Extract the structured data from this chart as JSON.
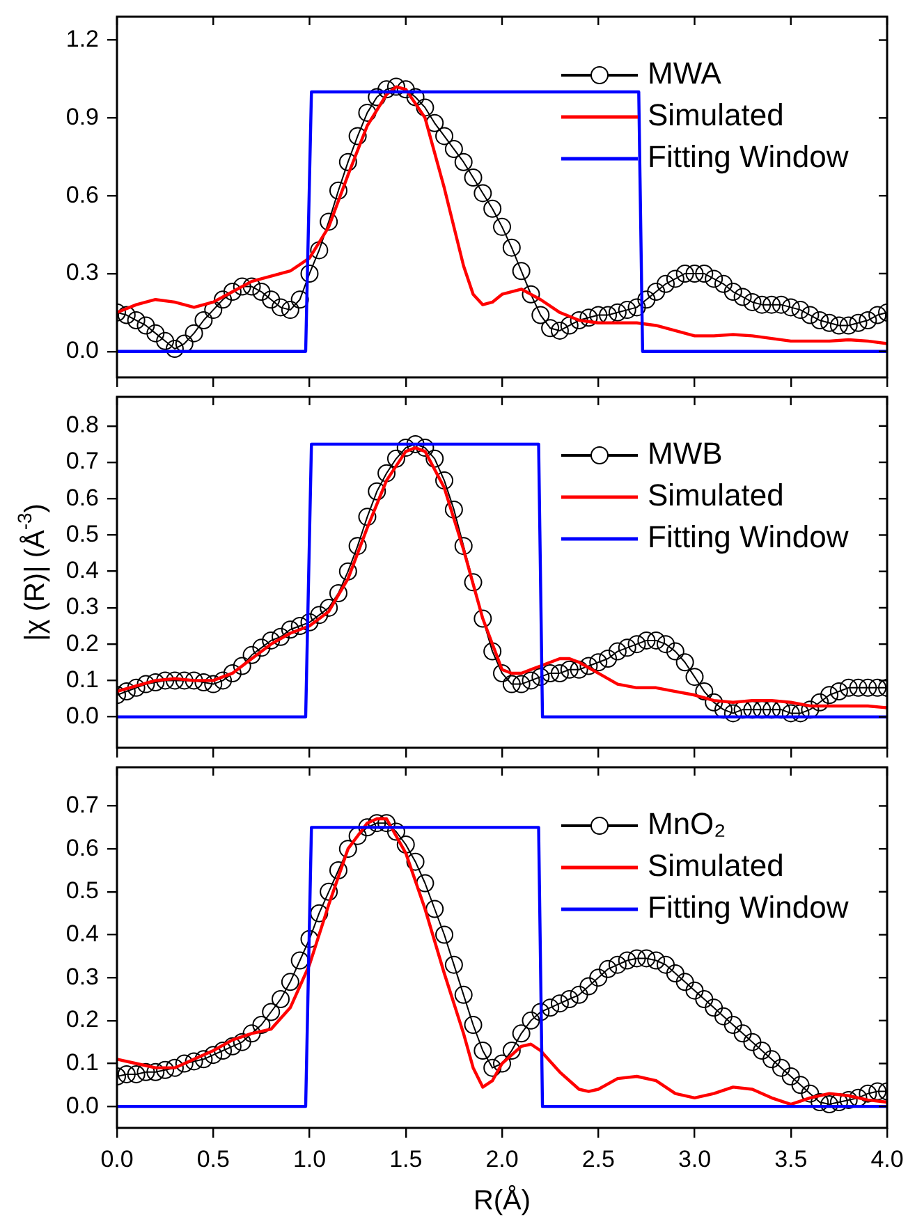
{
  "chart_data": [
    {
      "type": "line",
      "legend": "top right",
      "tick_labels": "y",
      "grid": false,
      "xlim": [
        0,
        4
      ],
      "xticks": [
        {
          "value": 0,
          "label": null
        },
        {
          "value": 0.5,
          "label": null
        },
        {
          "value": 1,
          "label": null
        },
        {
          "value": 1.5,
          "label": null
        },
        {
          "value": 2,
          "label": null
        },
        {
          "value": 2.5,
          "label": null
        },
        {
          "value": 3,
          "label": null
        },
        {
          "value": 3.5,
          "label": null
        },
        {
          "value": 4,
          "label": null
        }
      ],
      "ylim": [
        -0.1,
        1.29
      ],
      "yticks": [
        {
          "value": 0,
          "label": "0.0"
        },
        {
          "value": 0.3,
          "label": "0.3"
        },
        {
          "value": 0.6,
          "label": "0.6"
        },
        {
          "value": 0.9,
          "label": "0.9"
        },
        {
          "value": 1.2,
          "label": "1.2"
        }
      ],
      "series": [
        {
          "name": "MWA",
          "color": "#000000",
          "marker": "circle",
          "x": [
            0,
            0.05,
            0.1,
            0.15,
            0.2,
            0.25,
            0.3,
            0.35,
            0.4,
            0.45,
            0.5,
            0.55,
            0.6,
            0.65,
            0.7,
            0.75,
            0.8,
            0.85,
            0.9,
            0.95,
            1,
            1.05,
            1.1,
            1.15,
            1.2,
            1.25,
            1.3,
            1.35,
            1.4,
            1.45,
            1.5,
            1.55,
            1.6,
            1.65,
            1.7,
            1.75,
            1.8,
            1.85,
            1.9,
            1.95,
            2,
            2.05,
            2.1,
            2.15,
            2.2,
            2.25,
            2.3,
            2.35,
            2.4,
            2.45,
            2.5,
            2.55,
            2.6,
            2.65,
            2.7,
            2.75,
            2.8,
            2.85,
            2.9,
            2.95,
            3,
            3.05,
            3.1,
            3.15,
            3.2,
            3.25,
            3.3,
            3.35,
            3.4,
            3.45,
            3.5,
            3.55,
            3.6,
            3.65,
            3.7,
            3.75,
            3.8,
            3.85,
            3.9,
            3.95,
            4
          ],
          "values": [
            0.15,
            0.14,
            0.12,
            0.1,
            0.07,
            0.04,
            0.01,
            0.03,
            0.07,
            0.12,
            0.16,
            0.2,
            0.23,
            0.25,
            0.25,
            0.23,
            0.2,
            0.17,
            0.16,
            0.2,
            0.3,
            0.39,
            0.5,
            0.62,
            0.73,
            0.83,
            0.92,
            0.98,
            1.01,
            1.02,
            1.01,
            0.98,
            0.94,
            0.88,
            0.83,
            0.78,
            0.73,
            0.67,
            0.61,
            0.55,
            0.48,
            0.4,
            0.31,
            0.22,
            0.14,
            0.09,
            0.08,
            0.1,
            0.12,
            0.13,
            0.14,
            0.14,
            0.15,
            0.16,
            0.17,
            0.2,
            0.23,
            0.26,
            0.28,
            0.3,
            0.3,
            0.3,
            0.28,
            0.26,
            0.23,
            0.21,
            0.19,
            0.18,
            0.18,
            0.18,
            0.17,
            0.16,
            0.14,
            0.12,
            0.11,
            0.1,
            0.1,
            0.11,
            0.12,
            0.14,
            0.15
          ]
        },
        {
          "name": "Simulated",
          "color": "#ff0000",
          "x": [
            0,
            0.1,
            0.2,
            0.3,
            0.4,
            0.5,
            0.6,
            0.7,
            0.8,
            0.9,
            1,
            1.1,
            1.2,
            1.3,
            1.4,
            1.45,
            1.5,
            1.6,
            1.7,
            1.8,
            1.85,
            1.9,
            1.95,
            2,
            2.1,
            2.2,
            2.3,
            2.4,
            2.5,
            2.6,
            2.7,
            2.8,
            2.9,
            3,
            3.1,
            3.2,
            3.3,
            3.4,
            3.5,
            3.6,
            3.7,
            3.8,
            3.9,
            4
          ],
          "values": [
            0.15,
            0.18,
            0.2,
            0.19,
            0.17,
            0.19,
            0.23,
            0.27,
            0.29,
            0.31,
            0.36,
            0.48,
            0.68,
            0.87,
            0.99,
            1.02,
            1.01,
            0.9,
            0.63,
            0.33,
            0.22,
            0.18,
            0.19,
            0.22,
            0.24,
            0.2,
            0.15,
            0.12,
            0.11,
            0.11,
            0.11,
            0.1,
            0.08,
            0.06,
            0.06,
            0.065,
            0.06,
            0.05,
            0.04,
            0.04,
            0.04,
            0.045,
            0.04,
            0.03
          ]
        },
        {
          "name": "Fitting Window",
          "color": "#0000ff",
          "x": [
            0,
            0.98,
            1.01,
            2.71,
            2.73,
            4
          ],
          "values": [
            0,
            0,
            1,
            1,
            0,
            0
          ]
        }
      ]
    },
    {
      "type": "line",
      "legend": "top right",
      "tick_labels": "y",
      "grid": false,
      "ylabel": "|χ (R)| (Å$^{-3}$)",
      "xlim": [
        0,
        4
      ],
      "xticks": [
        {
          "value": 0,
          "label": null
        },
        {
          "value": 0.5,
          "label": null
        },
        {
          "value": 1,
          "label": null
        },
        {
          "value": 1.5,
          "label": null
        },
        {
          "value": 2,
          "label": null
        },
        {
          "value": 2.5,
          "label": null
        },
        {
          "value": 3,
          "label": null
        },
        {
          "value": 3.5,
          "label": null
        },
        {
          "value": 4,
          "label": null
        }
      ],
      "ylim": [
        -0.085,
        0.88
      ],
      "yticks": [
        {
          "value": 0,
          "label": "0.0"
        },
        {
          "value": 0.1,
          "label": "0.1"
        },
        {
          "value": 0.2,
          "label": "0.2"
        },
        {
          "value": 0.3,
          "label": "0.3"
        },
        {
          "value": 0.4,
          "label": "0.4"
        },
        {
          "value": 0.5,
          "label": "0.5"
        },
        {
          "value": 0.6,
          "label": "0.6"
        },
        {
          "value": 0.7,
          "label": "0.7"
        },
        {
          "value": 0.8,
          "label": "0.8"
        }
      ],
      "series": [
        {
          "name": "MWB",
          "color": "#000000",
          "marker": "circle",
          "x": [
            0,
            0.05,
            0.1,
            0.15,
            0.2,
            0.25,
            0.3,
            0.35,
            0.4,
            0.45,
            0.5,
            0.55,
            0.6,
            0.65,
            0.7,
            0.75,
            0.8,
            0.85,
            0.9,
            0.95,
            1,
            1.05,
            1.1,
            1.15,
            1.2,
            1.25,
            1.3,
            1.35,
            1.4,
            1.45,
            1.5,
            1.55,
            1.6,
            1.65,
            1.7,
            1.75,
            1.8,
            1.85,
            1.9,
            1.95,
            2,
            2.05,
            2.1,
            2.15,
            2.2,
            2.25,
            2.3,
            2.35,
            2.4,
            2.45,
            2.5,
            2.55,
            2.6,
            2.65,
            2.7,
            2.75,
            2.8,
            2.85,
            2.9,
            2.95,
            3,
            3.05,
            3.1,
            3.15,
            3.2,
            3.25,
            3.3,
            3.35,
            3.4,
            3.45,
            3.5,
            3.55,
            3.6,
            3.65,
            3.7,
            3.75,
            3.8,
            3.85,
            3.9,
            3.95,
            4
          ],
          "values": [
            0.06,
            0.07,
            0.08,
            0.09,
            0.095,
            0.1,
            0.1,
            0.1,
            0.1,
            0.095,
            0.09,
            0.1,
            0.12,
            0.14,
            0.17,
            0.19,
            0.21,
            0.22,
            0.24,
            0.25,
            0.26,
            0.28,
            0.3,
            0.34,
            0.4,
            0.47,
            0.55,
            0.62,
            0.67,
            0.71,
            0.74,
            0.75,
            0.74,
            0.71,
            0.65,
            0.57,
            0.47,
            0.37,
            0.27,
            0.18,
            0.12,
            0.09,
            0.09,
            0.1,
            0.11,
            0.12,
            0.12,
            0.13,
            0.13,
            0.14,
            0.15,
            0.16,
            0.18,
            0.19,
            0.2,
            0.21,
            0.21,
            0.2,
            0.18,
            0.15,
            0.11,
            0.07,
            0.04,
            0.02,
            0.01,
            0.02,
            0.02,
            0.02,
            0.02,
            0.02,
            0.01,
            0.01,
            0.02,
            0.04,
            0.06,
            0.07,
            0.08,
            0.08,
            0.08,
            0.08,
            0.08
          ]
        },
        {
          "name": "Simulated",
          "color": "#ff0000",
          "x": [
            0,
            0.1,
            0.2,
            0.3,
            0.4,
            0.5,
            0.6,
            0.7,
            0.8,
            0.9,
            1,
            1.1,
            1.2,
            1.3,
            1.4,
            1.5,
            1.55,
            1.6,
            1.7,
            1.8,
            1.9,
            2,
            2.05,
            2.1,
            2.2,
            2.3,
            2.35,
            2.4,
            2.5,
            2.6,
            2.7,
            2.8,
            2.9,
            3,
            3.1,
            3.2,
            3.3,
            3.4,
            3.5,
            3.6,
            3.7,
            3.8,
            3.9,
            4
          ],
          "values": [
            0.07,
            0.085,
            0.1,
            0.105,
            0.1,
            0.1,
            0.12,
            0.16,
            0.2,
            0.23,
            0.25,
            0.29,
            0.38,
            0.52,
            0.65,
            0.73,
            0.74,
            0.73,
            0.63,
            0.46,
            0.27,
            0.13,
            0.12,
            0.12,
            0.14,
            0.16,
            0.16,
            0.15,
            0.12,
            0.09,
            0.08,
            0.08,
            0.07,
            0.06,
            0.045,
            0.04,
            0.045,
            0.045,
            0.04,
            0.03,
            0.03,
            0.03,
            0.03,
            0.025
          ]
        },
        {
          "name": "Fitting Window",
          "color": "#0000ff",
          "x": [
            0,
            0.98,
            1.01,
            2.19,
            2.21,
            4
          ],
          "values": [
            0,
            0,
            0.75,
            0.75,
            0,
            0
          ]
        }
      ]
    },
    {
      "type": "line",
      "legend": "top right",
      "grid": false,
      "xlabel": "R(Å)",
      "xlim": [
        0,
        4
      ],
      "xticks": [
        {
          "value": 0,
          "label": "0.0"
        },
        {
          "value": 0.5,
          "label": "0.5"
        },
        {
          "value": 1,
          "label": "1.0"
        },
        {
          "value": 1.5,
          "label": "1.5"
        },
        {
          "value": 2,
          "label": "2.0"
        },
        {
          "value": 2.5,
          "label": "2.5"
        },
        {
          "value": 3,
          "label": "3.0"
        },
        {
          "value": 3.5,
          "label": "3.5"
        },
        {
          "value": 4,
          "label": "4.0"
        }
      ],
      "ylim": [
        -0.05,
        0.79
      ],
      "yticks": [
        {
          "value": 0,
          "label": "0.0"
        },
        {
          "value": 0.1,
          "label": "0.1"
        },
        {
          "value": 0.2,
          "label": "0.2"
        },
        {
          "value": 0.3,
          "label": "0.3"
        },
        {
          "value": 0.4,
          "label": "0.4"
        },
        {
          "value": 0.5,
          "label": "0.5"
        },
        {
          "value": 0.6,
          "label": "0.6"
        },
        {
          "value": 0.7,
          "label": "0.7"
        }
      ],
      "series": [
        {
          "name": "MnO₂",
          "color": "#000000",
          "marker": "circle",
          "x": [
            0,
            0.05,
            0.1,
            0.15,
            0.2,
            0.25,
            0.3,
            0.35,
            0.4,
            0.45,
            0.5,
            0.55,
            0.6,
            0.65,
            0.7,
            0.75,
            0.8,
            0.85,
            0.9,
            0.95,
            1,
            1.05,
            1.1,
            1.15,
            1.2,
            1.25,
            1.3,
            1.35,
            1.4,
            1.45,
            1.5,
            1.55,
            1.6,
            1.65,
            1.7,
            1.75,
            1.8,
            1.85,
            1.9,
            1.95,
            2,
            2.05,
            2.1,
            2.15,
            2.2,
            2.25,
            2.3,
            2.35,
            2.4,
            2.45,
            2.5,
            2.55,
            2.6,
            2.65,
            2.7,
            2.75,
            2.8,
            2.85,
            2.9,
            2.95,
            3,
            3.05,
            3.1,
            3.15,
            3.2,
            3.25,
            3.3,
            3.35,
            3.4,
            3.45,
            3.5,
            3.55,
            3.6,
            3.65,
            3.7,
            3.75,
            3.8,
            3.85,
            3.9,
            3.95,
            4
          ],
          "values": [
            0.07,
            0.075,
            0.075,
            0.08,
            0.08,
            0.085,
            0.09,
            0.1,
            0.105,
            0.11,
            0.12,
            0.13,
            0.14,
            0.15,
            0.17,
            0.19,
            0.22,
            0.25,
            0.29,
            0.34,
            0.39,
            0.45,
            0.5,
            0.55,
            0.6,
            0.63,
            0.65,
            0.66,
            0.66,
            0.64,
            0.61,
            0.57,
            0.52,
            0.46,
            0.4,
            0.33,
            0.26,
            0.19,
            0.13,
            0.09,
            0.1,
            0.13,
            0.17,
            0.2,
            0.22,
            0.23,
            0.24,
            0.25,
            0.26,
            0.28,
            0.3,
            0.32,
            0.33,
            0.34,
            0.345,
            0.345,
            0.34,
            0.33,
            0.31,
            0.29,
            0.27,
            0.25,
            0.23,
            0.21,
            0.19,
            0.17,
            0.15,
            0.13,
            0.11,
            0.09,
            0.07,
            0.05,
            0.03,
            0.01,
            0.005,
            0.01,
            0.015,
            0.02,
            0.03,
            0.035,
            0.035
          ]
        },
        {
          "name": "Simulated",
          "color": "#ff0000",
          "x": [
            0,
            0.1,
            0.2,
            0.3,
            0.4,
            0.5,
            0.6,
            0.7,
            0.8,
            0.9,
            1,
            1.1,
            1.2,
            1.3,
            1.35,
            1.4,
            1.5,
            1.6,
            1.7,
            1.8,
            1.85,
            1.9,
            1.95,
            2,
            2.1,
            2.15,
            2.2,
            2.3,
            2.4,
            2.45,
            2.5,
            2.6,
            2.7,
            2.8,
            2.9,
            3,
            3.1,
            3.2,
            3.3,
            3.4,
            3.5,
            3.6,
            3.7,
            3.8,
            3.9,
            4
          ],
          "values": [
            0.11,
            0.1,
            0.09,
            0.09,
            0.11,
            0.13,
            0.155,
            0.17,
            0.18,
            0.23,
            0.33,
            0.47,
            0.6,
            0.66,
            0.67,
            0.67,
            0.59,
            0.46,
            0.31,
            0.17,
            0.09,
            0.045,
            0.06,
            0.1,
            0.14,
            0.145,
            0.13,
            0.08,
            0.04,
            0.035,
            0.04,
            0.065,
            0.07,
            0.06,
            0.03,
            0.02,
            0.03,
            0.045,
            0.04,
            0.02,
            0.005,
            0.02,
            0.03,
            0.025,
            0.015,
            0.01
          ]
        },
        {
          "name": "Fitting Window",
          "color": "#0000ff",
          "x": [
            0,
            0.98,
            1.01,
            2.19,
            2.21,
            4
          ],
          "values": [
            0,
            0,
            0.65,
            0.65,
            0,
            0
          ]
        }
      ]
    }
  ]
}
